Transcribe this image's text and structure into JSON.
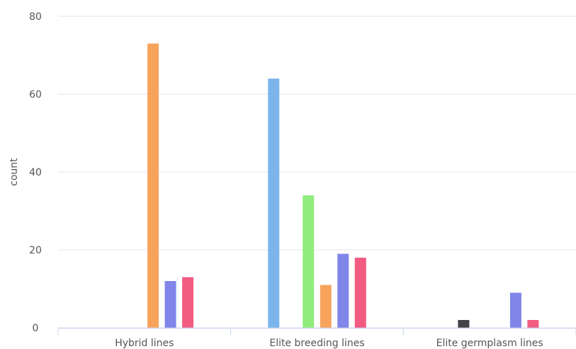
{
  "chart_data": {
    "type": "bar",
    "title": "",
    "xlabel": "",
    "ylabel": "count",
    "ylim": [
      0,
      80
    ],
    "yticks": [
      0,
      20,
      40,
      60,
      80
    ],
    "grid": true,
    "categories": [
      "Hybrid lines",
      "Elite breeding lines",
      "Elite germplasm lines"
    ],
    "series": [
      {
        "color": "#7cb5ec",
        "values": [
          0,
          64,
          0
        ]
      },
      {
        "color": "#434348",
        "values": [
          0,
          0,
          2
        ]
      },
      {
        "color": "#90ed7d",
        "values": [
          0,
          34,
          0
        ]
      },
      {
        "color": "#f7a35c",
        "values": [
          73,
          11,
          0
        ]
      },
      {
        "color": "#8085e9",
        "values": [
          12,
          19,
          9
        ]
      },
      {
        "color": "#f15c80",
        "values": [
          13,
          18,
          2
        ]
      }
    ]
  }
}
